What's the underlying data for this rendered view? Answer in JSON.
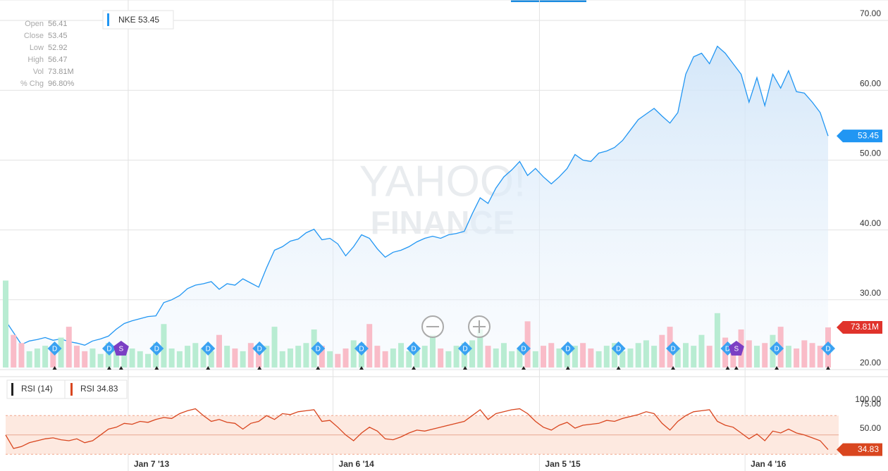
{
  "chart_data": [
    {
      "type": "area",
      "series": [
        {
          "name": "NKE",
          "color": "#2196f3",
          "values": [
            27.0,
            25.3,
            23.6,
            24.1,
            24.3,
            24.6,
            24.2,
            24.4,
            24.0,
            23.8,
            23.5,
            24.1,
            24.4,
            24.8,
            25.8,
            26.6,
            27.0,
            27.3,
            27.6,
            27.7,
            29.6,
            30.0,
            30.6,
            31.6,
            32.1,
            32.3,
            32.6,
            31.5,
            32.3,
            32.1,
            33.0,
            32.4,
            31.8,
            34.6,
            37.1,
            37.6,
            38.4,
            38.7,
            39.6,
            40.1,
            38.6,
            38.8,
            38.0,
            36.3,
            37.6,
            39.3,
            38.8,
            37.3,
            36.1,
            36.8,
            37.1,
            37.6,
            38.3,
            38.8,
            39.1,
            38.8,
            39.3,
            39.5,
            39.8,
            42.3,
            44.6,
            43.8,
            46.0,
            47.6,
            48.6,
            49.8,
            47.8,
            48.8,
            47.6,
            46.6,
            47.6,
            48.8,
            50.8,
            50.0,
            49.8,
            51.0,
            51.3,
            51.8,
            52.8,
            54.3,
            55.8,
            56.6,
            57.4,
            56.3,
            55.3,
            56.8,
            62.3,
            64.8,
            65.3,
            63.8,
            66.3,
            65.3,
            63.8,
            62.3,
            58.3,
            61.8,
            57.8,
            62.3,
            60.3,
            62.8,
            59.8,
            59.6,
            58.3,
            56.8,
            53.45
          ]
        }
      ],
      "xlim": [
        0,
        104
      ],
      "xticks": [
        {
          "value": 15.5,
          "label": "Jan 7 '13"
        },
        {
          "value": 41.4,
          "label": "Jan 6 '14"
        },
        {
          "value": 67.5,
          "label": "Jan 5 '15"
        },
        {
          "value": 93.5,
          "label": "Jan 4 '16"
        }
      ],
      "ylim": [
        20,
        70
      ],
      "yticks": [
        {
          "value": 70,
          "label": "70.00"
        },
        {
          "value": 60,
          "label": "60.00"
        },
        {
          "value": 50,
          "label": "50.00"
        },
        {
          "value": 40,
          "label": "40.00"
        },
        {
          "value": 30,
          "label": "30.00"
        },
        {
          "value": 20,
          "label": "20.00"
        }
      ],
      "grid": true,
      "quote": [
        {
          "label": "Open",
          "value": "56.41"
        },
        {
          "label": "Close",
          "value": "53.45"
        },
        {
          "label": "Low",
          "value": "52.92"
        },
        {
          "label": "High",
          "value": "56.47"
        },
        {
          "label": "Vol",
          "value": "73.81M"
        },
        {
          "label": "% Chg",
          "value": "96.80%"
        }
      ],
      "events": [
        {
          "label": "D",
          "x": 6.2
        },
        {
          "label": "D",
          "x": 13.1
        },
        {
          "label": "S",
          "x": 14.6
        },
        {
          "label": "D",
          "x": 19.1
        },
        {
          "label": "D",
          "x": 25.6
        },
        {
          "label": "D",
          "x": 32.1
        },
        {
          "label": "D",
          "x": 39.5
        },
        {
          "label": "D",
          "x": 45.0
        },
        {
          "label": "D",
          "x": 51.6
        },
        {
          "label": "D",
          "x": 58.1
        },
        {
          "label": "D",
          "x": 65.5
        },
        {
          "label": "D",
          "x": 71.1
        },
        {
          "label": "D",
          "x": 77.5
        },
        {
          "label": "D",
          "x": 84.4
        },
        {
          "label": "D",
          "x": 91.3
        },
        {
          "label": "S",
          "x": 92.4
        },
        {
          "label": "D",
          "x": 97.5
        },
        {
          "label": "D",
          "x": 104
        }
      ],
      "watermark": [
        "YAHOO!",
        "FINANCE"
      ]
    },
    {
      "type": "bar",
      "values": [
        160,
        60,
        45,
        30,
        35,
        40,
        38,
        55,
        75,
        40,
        30,
        35,
        25,
        45,
        40,
        30,
        35,
        30,
        25,
        45,
        80,
        35,
        30,
        40,
        45,
        35,
        30,
        60,
        40,
        35,
        30,
        45,
        35,
        40,
        75,
        30,
        35,
        40,
        45,
        70,
        40,
        30,
        25,
        35,
        50,
        45,
        80,
        40,
        30,
        35,
        45,
        30,
        35,
        40,
        60,
        35,
        30,
        40,
        45,
        50,
        70,
        40,
        35,
        45,
        30,
        35,
        85,
        30,
        40,
        45,
        35,
        30,
        40,
        45,
        35,
        30,
        40,
        45,
        30,
        35,
        45,
        50,
        40,
        60,
        75,
        35,
        45,
        40,
        60,
        40,
        100,
        55,
        35,
        70,
        50,
        40,
        45,
        60,
        75,
        40,
        35,
        50,
        45,
        40,
        73.81
      ],
      "last_label": "73.81M",
      "colors": {
        "up": "#b8ecd2",
        "down": "#f9bcc8",
        "badge": "#e0332b"
      },
      "xlim": [
        0,
        104
      ],
      "ylim": [
        0,
        160
      ]
    },
    {
      "type": "line",
      "indicator": "RSI (14)",
      "series": [
        {
          "name": "RSI",
          "color": "#d9461f",
          "values": [
            50,
            36,
            38,
            42,
            44,
            46,
            47,
            45,
            44,
            46,
            42,
            44,
            50,
            56,
            58,
            62,
            61,
            64,
            63,
            66,
            68,
            67,
            72,
            75,
            77,
            70,
            64,
            66,
            63,
            62,
            56,
            62,
            64,
            70,
            66,
            72,
            71,
            74,
            75,
            76,
            64,
            65,
            58,
            50,
            44,
            52,
            58,
            54,
            46,
            45,
            48,
            52,
            55,
            54,
            56,
            58,
            60,
            62,
            64,
            70,
            76,
            66,
            72,
            74,
            76,
            77,
            72,
            64,
            58,
            55,
            60,
            63,
            57,
            60,
            61,
            62,
            65,
            64,
            67,
            69,
            71,
            74,
            72,
            62,
            55,
            64,
            70,
            74,
            75,
            76,
            64,
            60,
            58,
            52,
            46,
            51,
            44,
            54,
            52,
            56,
            52,
            50,
            47,
            44,
            34.83
          ]
        }
      ],
      "xlim": [
        0,
        104
      ],
      "ylim": [
        20,
        100
      ],
      "yticks": [
        {
          "value": 100,
          "label": "100.00"
        },
        {
          "value": 75,
          "label": "75.00"
        },
        {
          "value": 50,
          "label": "50.00"
        }
      ],
      "band": [
        30,
        70
      ],
      "band_color": "#fde9e0"
    }
  ]
}
